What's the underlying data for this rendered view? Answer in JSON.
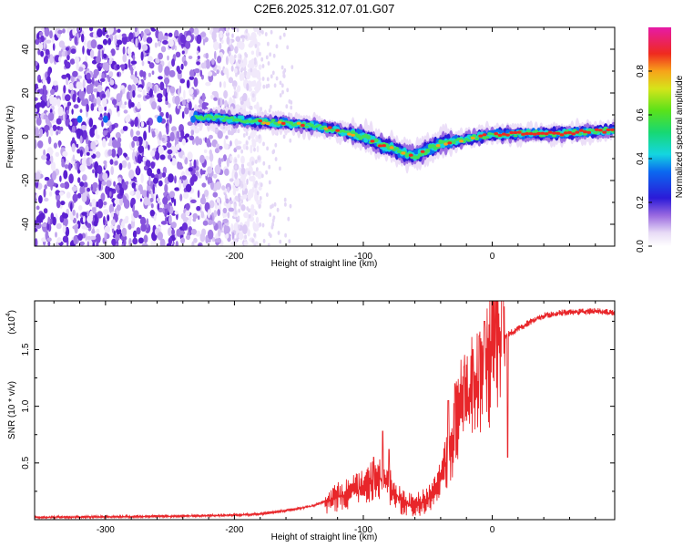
{
  "title": "C2E6.2025.312.07.01.G07",
  "chart_data": [
    {
      "type": "heatmap",
      "name": "spectrogram",
      "xlabel": "Height of straight line (km)",
      "ylabel": "Frequency (Hz)",
      "xlim": [
        -355,
        95
      ],
      "ylim": [
        -50,
        50
      ],
      "xticks": [
        -300,
        -200,
        -100,
        0
      ],
      "yticks": [
        -40,
        -20,
        0,
        20,
        40
      ],
      "colorbar": {
        "label": "Normalized spectral amplitude",
        "range": [
          0,
          1
        ],
        "ticks": [
          "0.0",
          "0.2",
          "0.4",
          "0.6",
          "0.8"
        ],
        "tick_values": [
          0.0,
          0.2,
          0.4,
          0.6,
          0.8
        ]
      },
      "ridge": {
        "x": [
          -355,
          -300,
          -250,
          -220,
          -200,
          -180,
          -160,
          -140,
          -120,
          -100,
          -85,
          -70,
          -60,
          -50,
          -40,
          -30,
          -20,
          -10,
          0,
          20,
          50,
          80,
          95
        ],
        "y": [
          8,
          8,
          8.5,
          9,
          8,
          7,
          6,
          5,
          3,
          0,
          -4,
          -7,
          -9,
          -6,
          -3,
          -2,
          -1,
          0,
          1,
          1.5,
          1.5,
          2.5,
          3
        ]
      },
      "noise_region_xmax": -190
    },
    {
      "type": "line",
      "name": "snr",
      "xlabel": "Height of straight line (km)",
      "ylabel": "SNR (10 * v/v)",
      "scale_label": "(x10",
      "scale_exp": "4",
      "xlim": [
        -355,
        95
      ],
      "ylim": [
        0,
        1.93
      ],
      "xticks": [
        -300,
        -200,
        -100,
        0
      ],
      "yticks": [
        0.5,
        1.0,
        1.5
      ],
      "ytick_labels": [
        "0.5",
        "1.0",
        "1.5"
      ],
      "color": "#e8262a",
      "envelope": {
        "x": [
          -355,
          -250,
          -200,
          -180,
          -160,
          -140,
          -120,
          -100,
          -90,
          -80,
          -70,
          -60,
          -50,
          -40,
          -30,
          -25,
          -20,
          -15,
          -10,
          -5,
          0,
          5,
          10,
          20,
          30,
          40,
          50,
          60,
          80,
          95
        ],
        "y": [
          0.02,
          0.03,
          0.04,
          0.05,
          0.08,
          0.12,
          0.2,
          0.28,
          0.38,
          0.3,
          0.15,
          0.12,
          0.18,
          0.35,
          0.75,
          0.95,
          1.05,
          1.12,
          1.2,
          1.35,
          1.48,
          1.55,
          1.62,
          1.68,
          1.75,
          1.8,
          1.82,
          1.83,
          1.84,
          1.82
        ]
      },
      "spikes": [
        {
          "x": -85,
          "y": 0.78
        },
        {
          "x": -92,
          "y": 0.55
        },
        {
          "x": -80,
          "y": 0.62
        },
        {
          "x": -34,
          "y": 1.05
        },
        {
          "x": -29,
          "y": 1.2
        },
        {
          "x": -22,
          "y": 1.35
        },
        {
          "x": -15,
          "y": 1.5
        },
        {
          "x": -10,
          "y": 1.62
        },
        {
          "x": -6,
          "y": 1.75
        },
        {
          "x": 3,
          "y": 1.95
        },
        {
          "x": 8,
          "y": 1.95
        },
        {
          "x": 12,
          "y": 0.55
        }
      ]
    }
  ]
}
